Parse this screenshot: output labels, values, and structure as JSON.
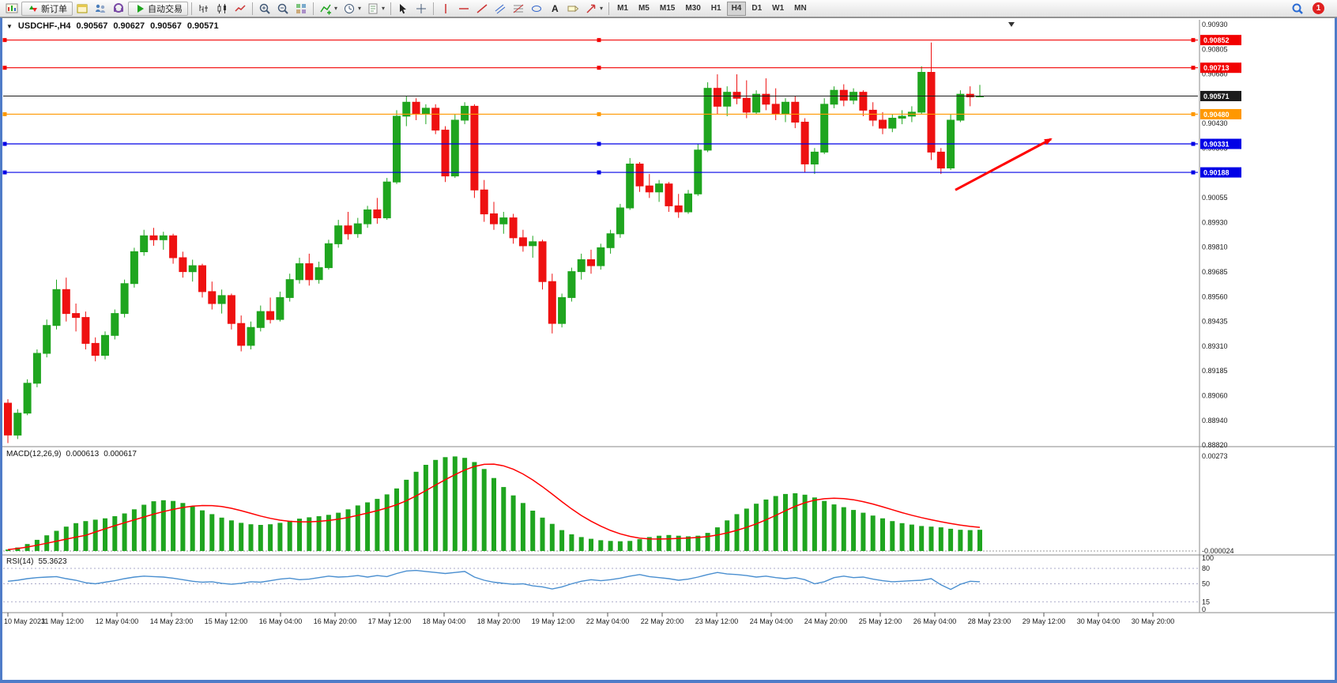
{
  "toolbar": {
    "buttons": [
      {
        "name": "new-chart-button",
        "icon": "chart"
      },
      {
        "name": "new-order-button",
        "icon": "neworder",
        "label": "新订单"
      },
      {
        "name": "charts-window-button",
        "icon": "windows"
      },
      {
        "name": "profiles-button",
        "icon": "profiles"
      },
      {
        "name": "market-watch-button",
        "icon": "market"
      },
      {
        "name": "auto-trading-button",
        "icon": "play",
        "label": "自动交易"
      },
      {
        "sep": true
      },
      {
        "name": "bar-chart-mode-button",
        "icon": "barsmode"
      },
      {
        "name": "candlestick-mode-button",
        "icon": "candlesmode"
      },
      {
        "name": "line-chart-mode-button",
        "icon": "linemode"
      },
      {
        "sep": true
      },
      {
        "name": "zoom-in-button",
        "icon": "zoomin"
      },
      {
        "name": "zoom-out-button",
        "icon": "zoomout"
      },
      {
        "name": "tile-windows-button",
        "icon": "tile"
      },
      {
        "sep": true
      },
      {
        "name": "indicators-button",
        "icon": "indicators",
        "caret": true
      },
      {
        "name": "periods-button",
        "icon": "clock",
        "caret": true
      },
      {
        "name": "templates-button",
        "icon": "template",
        "caret": true
      },
      {
        "sep": true
      },
      {
        "name": "cursor-button",
        "icon": "cursor"
      },
      {
        "name": "crosshair-button",
        "icon": "crosshair"
      },
      {
        "sep": true
      },
      {
        "name": "vertical-line-button",
        "icon": "vline"
      },
      {
        "name": "horizontal-line-button",
        "icon": "hline"
      },
      {
        "name": "trendline-button",
        "icon": "trendline"
      },
      {
        "name": "channel-button",
        "icon": "channel"
      },
      {
        "name": "fibonacci-button",
        "icon": "fibo"
      },
      {
        "name": "shapes-button",
        "icon": "shapes"
      },
      {
        "name": "text-button",
        "icon": "text"
      },
      {
        "name": "label-button",
        "icon": "label"
      },
      {
        "name": "arrows-button",
        "icon": "arrows",
        "caret": true
      },
      {
        "sep": true
      }
    ],
    "timeframes": {
      "items": [
        "M1",
        "M5",
        "M15",
        "M30",
        "H1",
        "H4",
        "D1",
        "W1",
        "MN"
      ],
      "active": "H4"
    },
    "right": {
      "search_icon": "search",
      "badge_count": "1"
    }
  },
  "header": {
    "collapse_icon": "▼"
  },
  "colors": {
    "bull": "#1fa51f",
    "bear": "#ee1111",
    "current_price": "#1c1c1c",
    "macd_bar": "#1fa51f",
    "macd_signal": "#ff0000",
    "rsi_line": "#4a8fd0",
    "arrow": "#ff0000"
  },
  "chart_data": {
    "type": "candlestick",
    "title": "USDCHF-,H4",
    "ohlc_header": {
      "open": "0.90567",
      "high": "0.90627",
      "low": "0.90567",
      "close": "0.90571"
    },
    "price_range": [
      0.8882,
      0.9093
    ],
    "price_axis_labels": [
      "0.90930",
      "0.90805",
      "0.90680",
      "0.90555",
      "0.90430",
      "0.90305",
      "0.90180",
      "0.90055",
      "0.89930",
      "0.89810",
      "0.89685",
      "0.89560",
      "0.89435",
      "0.89310",
      "0.89185",
      "0.89060",
      "0.88940",
      "0.88820"
    ],
    "time_axis_labels": [
      "10 May 2023",
      "11 May 12:00",
      "12 May 04:00",
      "14 May 23:00",
      "15 May 12:00",
      "16 May 04:00",
      "16 May 20:00",
      "17 May 12:00",
      "18 May 04:00",
      "18 May 20:00",
      "19 May 12:00",
      "22 May 04:00",
      "22 May 20:00",
      "23 May 12:00",
      "24 May 04:00",
      "24 May 20:00",
      "25 May 12:00",
      "26 May 04:00",
      "28 May 23:00",
      "29 May 12:00",
      "30 May 04:00",
      "30 May 20:00"
    ],
    "candles": [
      [
        0.8903,
        0.8905,
        0.8883,
        0.8887
      ],
      [
        0.8887,
        0.89,
        0.8885,
        0.8898
      ],
      [
        0.8898,
        0.8915,
        0.8897,
        0.8913
      ],
      [
        0.8913,
        0.893,
        0.8911,
        0.8928
      ],
      [
        0.8928,
        0.8945,
        0.8926,
        0.8942
      ],
      [
        0.8942,
        0.8965,
        0.894,
        0.896
      ],
      [
        0.896,
        0.8966,
        0.8944,
        0.8948
      ],
      [
        0.8948,
        0.8953,
        0.8939,
        0.8946
      ],
      [
        0.8946,
        0.8949,
        0.893,
        0.8933
      ],
      [
        0.8933,
        0.8936,
        0.8924,
        0.8927
      ],
      [
        0.8927,
        0.8939,
        0.8925,
        0.8937
      ],
      [
        0.8937,
        0.895,
        0.8935,
        0.8948
      ],
      [
        0.8948,
        0.8965,
        0.8946,
        0.8963
      ],
      [
        0.8963,
        0.8981,
        0.8961,
        0.8979
      ],
      [
        0.8979,
        0.899,
        0.8977,
        0.8987
      ],
      [
        0.8987,
        0.8991,
        0.8982,
        0.8985
      ],
      [
        0.8985,
        0.8989,
        0.898,
        0.8987
      ],
      [
        0.8987,
        0.8988,
        0.8973,
        0.8976
      ],
      [
        0.8976,
        0.8979,
        0.8966,
        0.8969
      ],
      [
        0.8969,
        0.8975,
        0.8964,
        0.8972
      ],
      [
        0.8972,
        0.8973,
        0.8956,
        0.8959
      ],
      [
        0.8959,
        0.8964,
        0.895,
        0.8953
      ],
      [
        0.8953,
        0.896,
        0.8948,
        0.8957
      ],
      [
        0.8957,
        0.8958,
        0.894,
        0.8943
      ],
      [
        0.8943,
        0.8947,
        0.8929,
        0.8932
      ],
      [
        0.8932,
        0.8944,
        0.893,
        0.8941
      ],
      [
        0.8941,
        0.8952,
        0.8939,
        0.8949
      ],
      [
        0.8949,
        0.8956,
        0.8943,
        0.8945
      ],
      [
        0.8945,
        0.8959,
        0.8944,
        0.8956
      ],
      [
        0.8956,
        0.8968,
        0.8954,
        0.8965
      ],
      [
        0.8965,
        0.8976,
        0.8963,
        0.8973
      ],
      [
        0.8973,
        0.8978,
        0.8962,
        0.8965
      ],
      [
        0.8965,
        0.8974,
        0.8963,
        0.8971
      ],
      [
        0.8971,
        0.8985,
        0.897,
        0.8983
      ],
      [
        0.8983,
        0.8995,
        0.8981,
        0.8992
      ],
      [
        0.8992,
        0.8999,
        0.8985,
        0.8988
      ],
      [
        0.8988,
        0.8996,
        0.8986,
        0.8993
      ],
      [
        0.8993,
        0.9002,
        0.8991,
        0.9
      ],
      [
        0.9,
        0.9006,
        0.8993,
        0.8996
      ],
      [
        0.8996,
        0.9016,
        0.8995,
        0.9014
      ],
      [
        0.9014,
        0.905,
        0.9013,
        0.9047
      ],
      [
        0.9047,
        0.9057,
        0.9042,
        0.9054
      ],
      [
        0.9054,
        0.9056,
        0.9045,
        0.9048
      ],
      [
        0.9048,
        0.9053,
        0.9043,
        0.9051
      ],
      [
        0.9051,
        0.9053,
        0.9038,
        0.904
      ],
      [
        0.904,
        0.9042,
        0.9014,
        0.9017
      ],
      [
        0.9017,
        0.9048,
        0.9016,
        0.9045
      ],
      [
        0.9045,
        0.9054,
        0.9043,
        0.9052
      ],
      [
        0.9052,
        0.9053,
        0.9006,
        0.901
      ],
      [
        0.901,
        0.9015,
        0.8994,
        0.8998
      ],
      [
        0.8998,
        0.9004,
        0.899,
        0.8993
      ],
      [
        0.8993,
        0.8999,
        0.8988,
        0.8996
      ],
      [
        0.8996,
        0.8998,
        0.8983,
        0.8986
      ],
      [
        0.8986,
        0.899,
        0.8979,
        0.8982
      ],
      [
        0.8982,
        0.8987,
        0.8976,
        0.8984
      ],
      [
        0.8984,
        0.8985,
        0.896,
        0.8964
      ],
      [
        0.8964,
        0.8968,
        0.8938,
        0.8943
      ],
      [
        0.8943,
        0.8958,
        0.8941,
        0.8956
      ],
      [
        0.8956,
        0.8971,
        0.8954,
        0.8969
      ],
      [
        0.8969,
        0.8978,
        0.8965,
        0.8975
      ],
      [
        0.8975,
        0.898,
        0.8968,
        0.8972
      ],
      [
        0.8972,
        0.8983,
        0.897,
        0.8981
      ],
      [
        0.8981,
        0.899,
        0.8978,
        0.8988
      ],
      [
        0.8988,
        0.9003,
        0.8986,
        0.9001
      ],
      [
        0.9001,
        0.9026,
        0.9,
        0.9023
      ],
      [
        0.9023,
        0.9024,
        0.9009,
        0.9012
      ],
      [
        0.9012,
        0.9018,
        0.9006,
        0.9009
      ],
      [
        0.9009,
        0.9015,
        0.9004,
        0.9013
      ],
      [
        0.9013,
        0.9014,
        0.8999,
        0.9002
      ],
      [
        0.9002,
        0.9008,
        0.8996,
        0.8999
      ],
      [
        0.8999,
        0.901,
        0.8998,
        0.9008
      ],
      [
        0.9008,
        0.9033,
        0.9007,
        0.903
      ],
      [
        0.903,
        0.9064,
        0.9029,
        0.9061
      ],
      [
        0.9061,
        0.9068,
        0.9048,
        0.9052
      ],
      [
        0.9052,
        0.9062,
        0.9047,
        0.9059
      ],
      [
        0.9059,
        0.9068,
        0.9053,
        0.9056
      ],
      [
        0.9056,
        0.9065,
        0.9046,
        0.9049
      ],
      [
        0.9049,
        0.906,
        0.9048,
        0.9058
      ],
      [
        0.9058,
        0.9066,
        0.905,
        0.9053
      ],
      [
        0.9053,
        0.9061,
        0.9045,
        0.9048
      ],
      [
        0.9048,
        0.9056,
        0.9044,
        0.9054
      ],
      [
        0.9054,
        0.9057,
        0.9041,
        0.9044
      ],
      [
        0.9044,
        0.9046,
        0.9019,
        0.9023
      ],
      [
        0.9023,
        0.9031,
        0.9018,
        0.9029
      ],
      [
        0.9029,
        0.9056,
        0.9028,
        0.9053
      ],
      [
        0.9053,
        0.9062,
        0.9051,
        0.906
      ],
      [
        0.906,
        0.9063,
        0.9052,
        0.9055
      ],
      [
        0.9055,
        0.9061,
        0.9053,
        0.9059
      ],
      [
        0.9059,
        0.906,
        0.9047,
        0.905
      ],
      [
        0.905,
        0.9054,
        0.9042,
        0.9045
      ],
      [
        0.9045,
        0.9049,
        0.9038,
        0.9041
      ],
      [
        0.9041,
        0.9048,
        0.9039,
        0.9046
      ],
      [
        0.9046,
        0.905,
        0.9043,
        0.9047
      ],
      [
        0.9047,
        0.9052,
        0.9044,
        0.9049
      ],
      [
        0.9049,
        0.9072,
        0.9048,
        0.9069
      ],
      [
        0.9069,
        0.9084,
        0.9025,
        0.9029
      ],
      [
        0.9029,
        0.9031,
        0.9018,
        0.9021
      ],
      [
        0.9021,
        0.9048,
        0.902,
        0.9045
      ],
      [
        0.9045,
        0.906,
        0.9044,
        0.9058
      ],
      [
        0.9058,
        0.9062,
        0.9052,
        0.90567
      ],
      [
        0.90567,
        0.90627,
        0.90567,
        0.90571
      ]
    ],
    "horizontal_lines": [
      {
        "price": 0.90852,
        "label": "0.90852",
        "color": "#f20000",
        "type": "resistance"
      },
      {
        "price": 0.90713,
        "label": "0.90713",
        "color": "#f20000",
        "type": "resistance"
      },
      {
        "price": 0.9048,
        "label": "0.90480",
        "color": "#ff9800",
        "type": "pivot"
      },
      {
        "price": 0.90331,
        "label": "0.90331",
        "color": "#0000e6",
        "type": "support"
      },
      {
        "price": 0.90188,
        "label": "0.90188",
        "color": "#0000e6",
        "type": "support"
      }
    ],
    "current_price": {
      "value": 0.90571,
      "label": "0.90571"
    },
    "arrow_annotation": {
      "from_price": 0.901,
      "to_price": 0.90355,
      "color": "#ff0000"
    },
    "indicators": {
      "macd": {
        "label": "MACD(12,26,9)",
        "value1": "0.000613",
        "value2": "0.000617",
        "scale_max_label": "0.00273",
        "scale_min_label": "-0.000024",
        "histogram": [
          4e-05,
          0.0001,
          0.0002,
          0.00032,
          0.00045,
          0.00058,
          0.0007,
          0.0008,
          0.00086,
          0.0009,
          0.00094,
          0.001,
          0.00108,
          0.0012,
          0.00133,
          0.00143,
          0.00146,
          0.00144,
          0.00138,
          0.00128,
          0.00117,
          0.00106,
          0.00096,
          0.00088,
          0.00081,
          0.00077,
          0.00075,
          0.00077,
          0.00081,
          0.00087,
          0.00093,
          0.00097,
          0.001,
          0.00104,
          0.0011,
          0.0012,
          0.00131,
          0.0014,
          0.0015,
          0.00163,
          0.0018,
          0.00205,
          0.00228,
          0.00248,
          0.00262,
          0.0027,
          0.00272,
          0.00268,
          0.00256,
          0.00236,
          0.0021,
          0.00184,
          0.0016,
          0.00138,
          0.00116,
          0.00096,
          0.00078,
          0.0006,
          0.00048,
          0.0004,
          0.00035,
          0.00031,
          0.00029,
          0.00028,
          0.00029,
          0.00034,
          0.0004,
          0.00044,
          0.00046,
          0.00044,
          0.00042,
          0.00044,
          0.00052,
          0.00068,
          0.00088,
          0.00106,
          0.00122,
          0.00136,
          0.00148,
          0.00158,
          0.00164,
          0.00166,
          0.00162,
          0.00154,
          0.00144,
          0.00134,
          0.00126,
          0.00118,
          0.0011,
          0.00102,
          0.00094,
          0.00086,
          0.0008,
          0.00076,
          0.00072,
          0.0007,
          0.00068,
          0.00064,
          0.00061,
          0.0006,
          0.00061
        ]
      },
      "rsi": {
        "label": "RSI(14)",
        "value": "55.3623",
        "levels_labels": [
          "100",
          "80",
          "50",
          "15",
          "0"
        ],
        "level_lines": [
          80,
          50,
          15
        ],
        "values": [
          55,
          57,
          60,
          62,
          63,
          64,
          60,
          57,
          52,
          50,
          53,
          56,
          60,
          63,
          65,
          64,
          63,
          61,
          58,
          55,
          53,
          54,
          51,
          49,
          51,
          54,
          53,
          56,
          59,
          61,
          58,
          59,
          62,
          65,
          63,
          64,
          66,
          63,
          66,
          64,
          70,
          75,
          76,
          74,
          72,
          70,
          72,
          74,
          63,
          57,
          53,
          51,
          49,
          50,
          46,
          44,
          40,
          44,
          50,
          55,
          58,
          56,
          58,
          61,
          65,
          68,
          64,
          62,
          60,
          57,
          59,
          63,
          68,
          72,
          69,
          68,
          66,
          63,
          65,
          62,
          60,
          62,
          58,
          50,
          54,
          62,
          65,
          62,
          63,
          59,
          56,
          54,
          55,
          56,
          57,
          60,
          48,
          39,
          49,
          55,
          54
        ]
      }
    }
  }
}
